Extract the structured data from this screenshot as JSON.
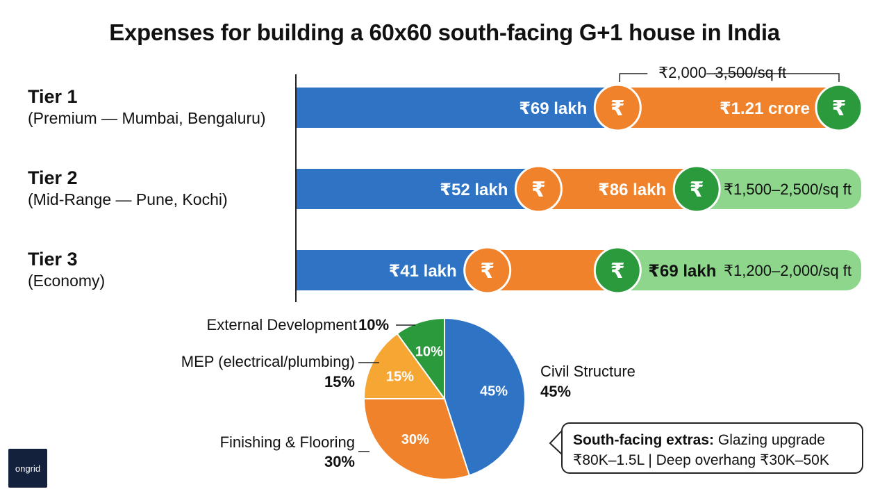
{
  "title": "Expenses for building a 60x60 south-facing G+1 house in India",
  "logo_text": "ongrid",
  "colors": {
    "blue": "#2f73c4",
    "orange": "#f0822b",
    "dark_green": "#2a9a3c",
    "light_green": "#8dd68c",
    "mep_orange": "#f6a633"
  },
  "chart_data": [
    {
      "type": "bar",
      "orientation": "horizontal",
      "title": "",
      "categories": [
        "Tier 1",
        "Tier 2",
        "Tier 3"
      ],
      "category_subtitles": [
        "(Premium — Mumbai, Bengaluru)",
        "(Mid-Range — Pune, Kochi)",
        "(Economy)"
      ],
      "series": [
        {
          "name": "",
          "values": [
            69,
            52,
            41
          ],
          "labels": [
            "₹69 lakh",
            "₹52 lakh",
            "₹41 lakh"
          ]
        },
        {
          "name": "",
          "values": [
            121,
            86,
            69
          ],
          "labels": [
            "₹1.21 crore",
            "₹86 lakh",
            "₹69 lakh"
          ]
        }
      ],
      "unit": "lakh",
      "rate_labels": [
        "₹2,000–3,500/sq ft",
        "₹1,500–2,500/sq ft",
        "₹1,200–2,000/sq ft"
      ],
      "icon": "rupee-coin-icon"
    },
    {
      "type": "pie",
      "slices": [
        {
          "label": "Civil Structure",
          "value": 45,
          "pct_label": "45%",
          "legend_pct": "45%",
          "color": "#2f73c4"
        },
        {
          "label": "Finishing & Flooring",
          "value": 30,
          "pct_label": "30%",
          "legend_pct": "30%",
          "color": "#f0822b"
        },
        {
          "label": "MEP (electrical/plumbing)",
          "value": 15,
          "pct_label": "15%",
          "legend_pct": "15%",
          "color": "#f6a633"
        },
        {
          "label": "External Development",
          "value": 10,
          "pct_label": "10%",
          "legend_pct": "10%",
          "color": "#2a9a3c"
        }
      ]
    }
  ],
  "callout": {
    "bold": "South-facing extras:",
    "line1": "Glazing upgrade",
    "line2": "₹80K–1.5L  |  Deep overhang ₹30K–50K"
  }
}
